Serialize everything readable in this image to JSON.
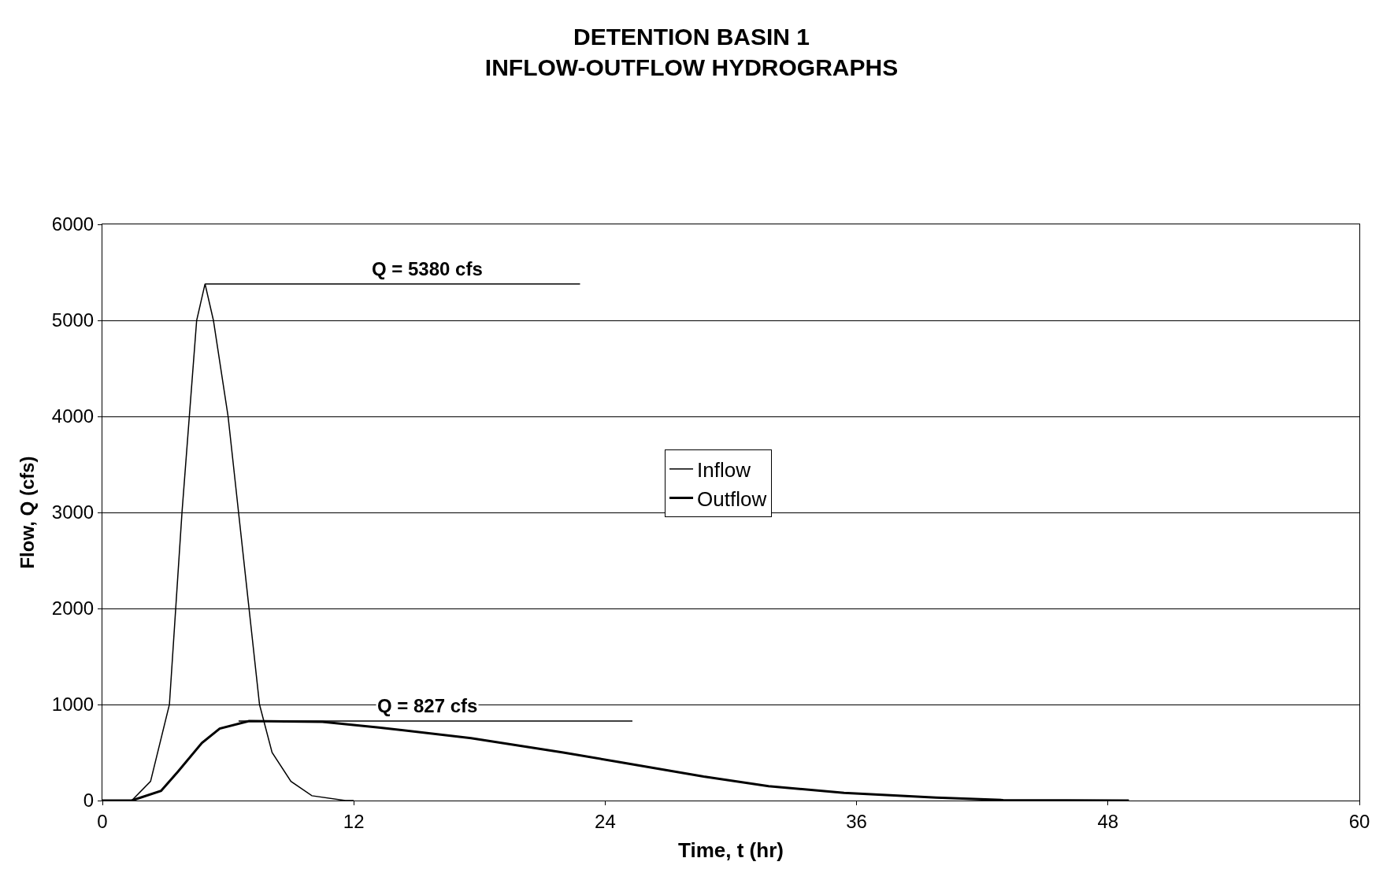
{
  "chart_data": {
    "type": "line",
    "title": "DETENTION BASIN 1\nINFLOW-OUTFLOW HYDROGRAPHS",
    "xlabel": "Time, t (hr)",
    "ylabel": "Flow, Q (cfs)",
    "xlim": [
      0,
      60
    ],
    "xticks": [
      0,
      12,
      24,
      36,
      48,
      60
    ],
    "ylim": [
      0,
      6000
    ],
    "yticks": [
      0,
      1000,
      2000,
      3000,
      4000,
      5000,
      6000
    ],
    "grid": "y",
    "legend": "center",
    "line_style": "solid",
    "marker": "none",
    "series": [
      {
        "name": "Inflow",
        "color": "#000000",
        "x": [
          0,
          1.4,
          2.3,
          3.2,
          3.8,
          4.5,
          4.9,
          5.3,
          6.0,
          6.5,
          7.0,
          7.5,
          8.1,
          9.0,
          10.0,
          11.6,
          12
        ],
        "values": [
          0,
          0,
          200,
          1000,
          3000,
          5000,
          5380,
          5000,
          4000,
          3000,
          2000,
          1000,
          500,
          200,
          50,
          0,
          0
        ]
      },
      {
        "name": "Outflow",
        "color": "#000000",
        "x": [
          0,
          1.4,
          2.8,
          3.6,
          4.75,
          5.6,
          7.0,
          10.5,
          13.2,
          17.6,
          22.0,
          24.7,
          28.7,
          31.8,
          35.4,
          39.8,
          43.0,
          49.0
        ],
        "values": [
          0,
          0,
          100,
          300,
          600,
          750,
          827,
          820,
          760,
          650,
          500,
          400,
          250,
          150,
          80,
          30,
          5,
          0
        ]
      },
      {
        "color": "#000000",
        "x": [
          4.9,
          22.8
        ],
        "values": [
          5380,
          5380
        ]
      },
      {
        "color": "#000000",
        "x": [
          6.5,
          25.3
        ],
        "values": [
          827,
          827
        ]
      }
    ],
    "annotations": [
      {
        "text": "Q = 5380 cfs",
        "x": 15.5,
        "y": 5380
      },
      {
        "text": "Q = 827 cfs",
        "x": 15.5,
        "y": 827
      }
    ]
  }
}
